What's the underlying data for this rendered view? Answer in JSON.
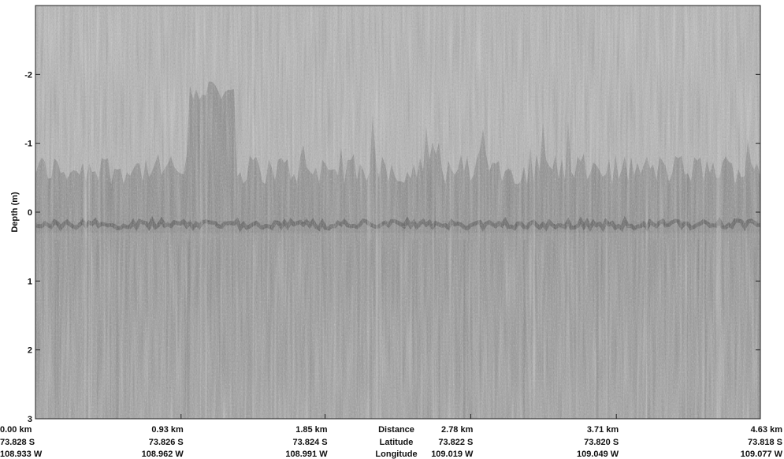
{
  "chart_data": {
    "type": "heatmap",
    "title": "",
    "ylabel": "Depth (m)",
    "ylim": [
      -3,
      3
    ],
    "y_inverted": true,
    "y_ticks": [
      -2,
      -1,
      0,
      1,
      2,
      3
    ],
    "colormap": "grayscale",
    "xlim_km": [
      0,
      4.63
    ],
    "x_ticks": [
      {
        "distance_km": 0.0,
        "distance": "0.00 km",
        "latitude": "73.828 S",
        "longitude": "108.933 W"
      },
      {
        "distance_km": 0.93,
        "distance": "0.93 km",
        "latitude": "73.826 S",
        "longitude": "108.962 W"
      },
      {
        "distance_km": 1.85,
        "distance": "1.85 km",
        "latitude": "73.824 S",
        "longitude": "108.991 W"
      },
      {
        "distance_km": 2.78,
        "distance": "2.78 km",
        "latitude": "73.822 S",
        "longitude": "109.019 W"
      },
      {
        "distance_km": 3.71,
        "distance": "3.71 km",
        "latitude": "73.820 S",
        "longitude": "109.049 W"
      },
      {
        "distance_km": 4.63,
        "distance": "4.63 km",
        "latitude": "73.818 S",
        "longitude": "109.077 W"
      }
    ],
    "row_labels": [
      "Distance",
      "Latitude",
      "Longitude"
    ]
  }
}
